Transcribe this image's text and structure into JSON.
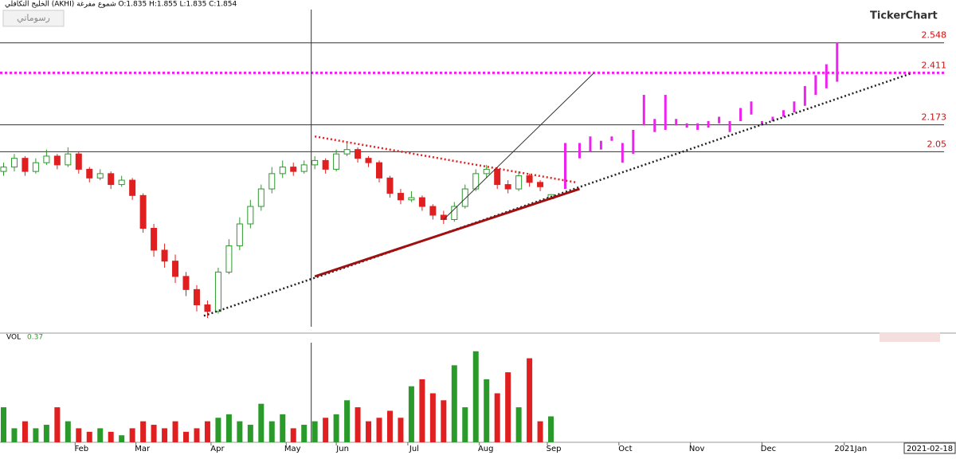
{
  "chart_data": {
    "type": "candlestick",
    "header": "الخليج التكافلي (AKHI) شموع مفرغة O:1.835 H:1.855 L:1.835 C:1.854",
    "button": "رسوماتي",
    "logo": "TickerChart",
    "date_box": "2021-02-18",
    "vol_label": "VOL",
    "vol_value": 0.37,
    "xlim": [
      0,
      265
    ],
    "ylim": [
      1.25,
      2.7
    ],
    "vol_ylim": [
      0,
      1.4
    ],
    "xticks": [
      {
        "value": 21,
        "label": "Feb"
      },
      {
        "value": 38,
        "label": "Mar"
      },
      {
        "value": 59,
        "label": "Apr"
      },
      {
        "value": 80,
        "label": "May"
      },
      {
        "value": 94,
        "label": "Jun"
      },
      {
        "value": 114,
        "label": "Jul"
      },
      {
        "value": 134,
        "label": "Aug"
      },
      {
        "value": 153,
        "label": "Sep"
      },
      {
        "value": 173,
        "label": "Oct"
      },
      {
        "value": 193,
        "label": "Nov"
      },
      {
        "value": 213,
        "label": "Dec"
      },
      {
        "value": 236,
        "label": "2021Jan"
      }
    ],
    "x": [
      1,
      4,
      7,
      10,
      13,
      16,
      19,
      22,
      25,
      28,
      31,
      34,
      37,
      40,
      43,
      46,
      49,
      52,
      55,
      58,
      61,
      64,
      67,
      70,
      73,
      76,
      79,
      82,
      85,
      88,
      91,
      94,
      97,
      100,
      103,
      106,
      109,
      112,
      115,
      118,
      121,
      124,
      127,
      130,
      133,
      136,
      139,
      142,
      145,
      148,
      151,
      154
    ],
    "open": [
      1.96,
      1.98,
      2.02,
      1.96,
      2.0,
      2.03,
      1.99,
      2.04,
      1.97,
      1.93,
      1.95,
      1.9,
      1.92,
      1.85,
      1.7,
      1.6,
      1.55,
      1.48,
      1.42,
      1.35,
      1.32,
      1.5,
      1.62,
      1.72,
      1.8,
      1.88,
      1.95,
      1.98,
      1.96,
      1.99,
      2.01,
      1.97,
      2.04,
      2.06,
      2.02,
      2.0,
      1.93,
      1.86,
      1.83,
      1.84,
      1.8,
      1.76,
      1.74,
      1.8,
      1.88,
      1.95,
      1.97,
      1.9,
      1.88,
      1.94,
      1.91,
      1.835
    ],
    "high": [
      2.0,
      2.04,
      2.03,
      2.02,
      2.06,
      2.04,
      2.07,
      2.05,
      1.98,
      1.97,
      1.96,
      1.94,
      1.93,
      1.86,
      1.72,
      1.63,
      1.58,
      1.5,
      1.44,
      1.37,
      1.52,
      1.65,
      1.75,
      1.83,
      1.9,
      1.98,
      2.01,
      2.0,
      2.01,
      2.03,
      2.02,
      2.06,
      2.09,
      2.07,
      2.03,
      2.01,
      1.94,
      1.88,
      1.87,
      1.85,
      1.81,
      1.78,
      1.82,
      1.9,
      1.97,
      1.99,
      1.98,
      1.92,
      1.96,
      1.95,
      1.92,
      1.855
    ],
    "low": [
      1.94,
      1.96,
      1.94,
      1.95,
      1.99,
      1.97,
      1.98,
      1.95,
      1.91,
      1.92,
      1.88,
      1.89,
      1.83,
      1.68,
      1.57,
      1.52,
      1.45,
      1.39,
      1.32,
      1.29,
      1.31,
      1.49,
      1.6,
      1.7,
      1.78,
      1.86,
      1.93,
      1.94,
      1.95,
      1.97,
      1.95,
      1.96,
      2.03,
      2.0,
      1.98,
      1.91,
      1.84,
      1.81,
      1.82,
      1.78,
      1.74,
      1.72,
      1.73,
      1.79,
      1.87,
      1.93,
      1.88,
      1.86,
      1.87,
      1.89,
      1.87,
      1.835
    ],
    "close": [
      1.98,
      2.02,
      1.96,
      2.0,
      2.03,
      1.99,
      2.04,
      1.97,
      1.93,
      1.95,
      1.9,
      1.92,
      1.85,
      1.7,
      1.6,
      1.55,
      1.48,
      1.42,
      1.35,
      1.32,
      1.5,
      1.62,
      1.72,
      1.8,
      1.88,
      1.95,
      1.98,
      1.96,
      1.99,
      2.01,
      1.97,
      2.04,
      2.06,
      2.02,
      2.0,
      1.93,
      1.86,
      1.83,
      1.84,
      1.8,
      1.76,
      1.74,
      1.8,
      1.88,
      1.95,
      1.97,
      1.9,
      1.88,
      1.94,
      1.91,
      1.89,
      1.854
    ],
    "volume": [
      0.5,
      0.2,
      0.3,
      0.2,
      0.25,
      0.5,
      0.3,
      0.2,
      0.15,
      0.2,
      0.15,
      0.1,
      0.2,
      0.3,
      0.25,
      0.2,
      0.3,
      0.15,
      0.2,
      0.3,
      0.35,
      0.4,
      0.3,
      0.25,
      0.55,
      0.3,
      0.4,
      0.2,
      0.25,
      0.3,
      0.35,
      0.4,
      0.6,
      0.5,
      0.3,
      0.35,
      0.45,
      0.35,
      0.8,
      0.9,
      0.7,
      0.6,
      1.1,
      0.5,
      1.3,
      0.9,
      0.7,
      1.0,
      0.5,
      1.2,
      0.3,
      0.37
    ],
    "up_color": "#2a9a2a",
    "down_color": "#e02020",
    "projection": {
      "color": "#ee22ee",
      "x": [
        158,
        162,
        165,
        168,
        171,
        174,
        177,
        180,
        183,
        186,
        189,
        192,
        195,
        198,
        201,
        204,
        207,
        210,
        213,
        216,
        219,
        222,
        225,
        228,
        231,
        234
      ],
      "low": [
        1.88,
        2.02,
        2.05,
        2.06,
        2.1,
        2.0,
        2.04,
        2.17,
        2.14,
        2.15,
        2.17,
        2.16,
        2.15,
        2.16,
        2.18,
        2.14,
        2.19,
        2.22,
        2.17,
        2.19,
        2.21,
        2.23,
        2.26,
        2.31,
        2.34,
        2.37
      ],
      "high": [
        2.09,
        2.09,
        2.12,
        2.1,
        2.12,
        2.09,
        2.15,
        2.31,
        2.2,
        2.31,
        2.2,
        2.18,
        2.18,
        2.19,
        2.21,
        2.19,
        2.25,
        2.28,
        2.19,
        2.21,
        2.24,
        2.28,
        2.35,
        2.4,
        2.45,
        2.55
      ]
    },
    "levels": [
      2.548,
      2.411,
      2.173,
      2.05
    ],
    "level_colors": [
      "#333333",
      "#ee22ee",
      "#333333",
      "#333333"
    ],
    "level_label_color": "#d01010",
    "trendlines": [
      {
        "points": [
          [
            57,
            1.3
          ],
          [
            255,
            2.41
          ]
        ],
        "color": "#222222",
        "style": "dotted"
      },
      {
        "points": [
          [
            88,
            1.48
          ],
          [
            162,
            1.88
          ]
        ],
        "color": "#a01010",
        "style": "solid"
      },
      {
        "points": [
          [
            88,
            2.12
          ],
          [
            161,
            1.91
          ]
        ],
        "color": "#e02020",
        "style": "dotted"
      },
      {
        "points": [
          [
            124,
            1.74
          ],
          [
            166,
            2.41
          ]
        ],
        "color": "#333333",
        "style": "thin"
      }
    ],
    "crosshair_x": 87
  }
}
